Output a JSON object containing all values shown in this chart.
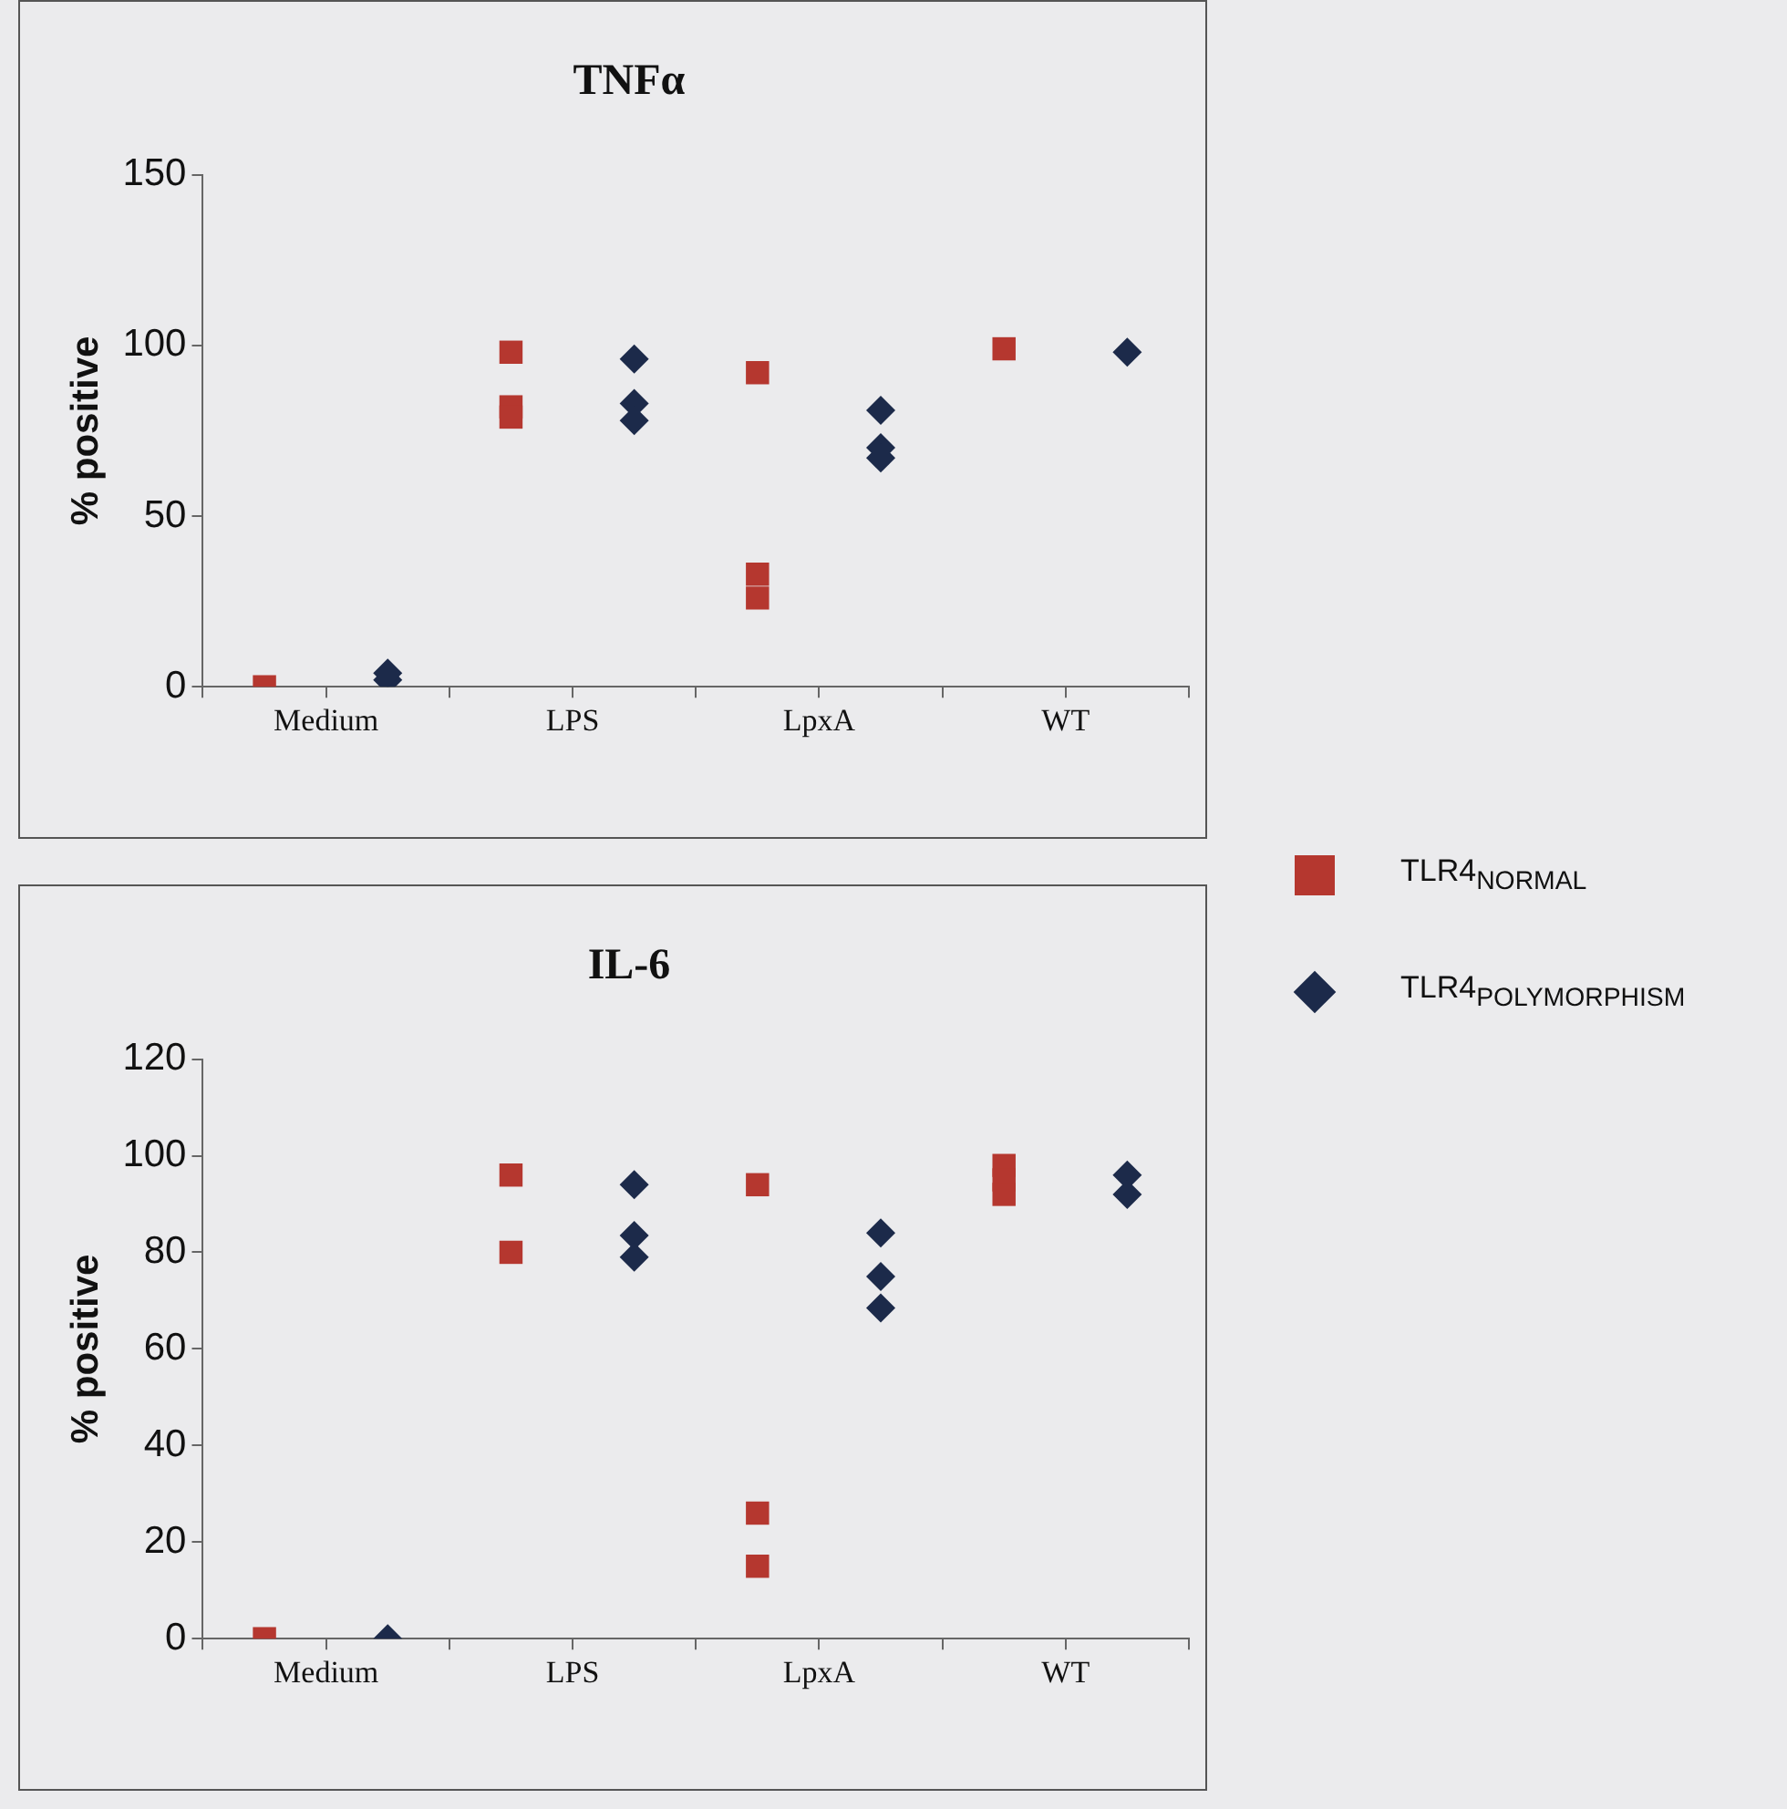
{
  "chart_data": [
    {
      "type": "scatter",
      "title": "TNFα",
      "ylabel": "% positive",
      "categories": [
        "Medium",
        "LPS",
        "LpxA",
        "WT"
      ],
      "ylim": [
        0,
        150
      ],
      "yticks": [
        0,
        50,
        100,
        150
      ],
      "grid": false,
      "legend": "right",
      "series": [
        {
          "name": "TLR4$_{NORMAL}$",
          "color": "#b5372f",
          "marker": "square",
          "x": [
            "Medium",
            "LPS",
            "LPS",
            "LPS",
            "LpxA",
            "LpxA",
            "LpxA",
            "WT"
          ],
          "values": [
            0,
            98,
            82,
            79,
            92,
            33,
            26,
            99
          ]
        },
        {
          "name": "TLR4$_{POLYMORPHISM}$",
          "color": "#1c2a4a",
          "marker": "diamond",
          "x": [
            "Medium",
            "Medium",
            "LPS",
            "LPS",
            "LPS",
            "LpxA",
            "LpxA",
            "LpxA",
            "WT"
          ],
          "values": [
            2,
            4,
            96,
            83,
            78,
            81,
            70,
            67,
            98
          ]
        }
      ]
    },
    {
      "type": "scatter",
      "title": "IL-6",
      "ylabel": "% positive",
      "categories": [
        "Medium",
        "LPS",
        "LpxA",
        "WT"
      ],
      "ylim": [
        0,
        120
      ],
      "yticks": [
        0,
        20,
        40,
        60,
        80,
        100,
        120
      ],
      "grid": false,
      "series": [
        {
          "color": "#b5372f",
          "marker": "square",
          "x": [
            "Medium",
            "LPS",
            "LPS",
            "LpxA",
            "LpxA",
            "LpxA",
            "WT",
            "WT",
            "WT"
          ],
          "values": [
            0,
            96,
            80,
            94,
            26,
            15,
            98,
            95,
            92
          ]
        },
        {
          "color": "#1c2a4a",
          "marker": "diamond",
          "x": [
            "Medium",
            "LPS",
            "LPS",
            "LPS",
            "LpxA",
            "LpxA",
            "LpxA",
            "WT",
            "WT"
          ],
          "values": [
            0,
            94,
            83.5,
            79,
            84,
            75,
            68.5,
            96,
            92
          ]
        }
      ]
    }
  ]
}
